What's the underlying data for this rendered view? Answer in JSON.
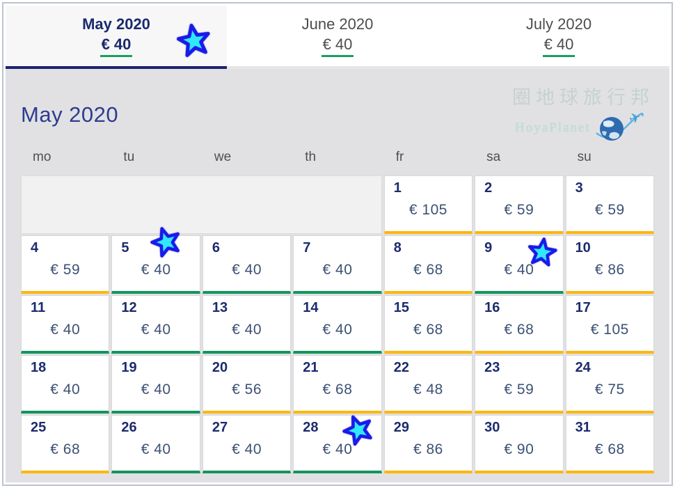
{
  "tabs": [
    {
      "label": "May 2020",
      "price": "€ 40",
      "active": true
    },
    {
      "label": "June 2020",
      "price": "€ 40",
      "active": false
    },
    {
      "label": "July 2020",
      "price": "€ 40",
      "active": false
    }
  ],
  "month_title": "May 2020",
  "weekdays": [
    "mo",
    "tu",
    "we",
    "th",
    "fr",
    "sa",
    "su"
  ],
  "watermark": {
    "title": "圈地球旅行邦",
    "subtitle": "HoyaPlanet",
    "icon": "globe-plane-icon"
  },
  "calendar": {
    "leading_empty": 4,
    "days": [
      {
        "day": "1",
        "price": "€ 105",
        "tier": "yellow"
      },
      {
        "day": "2",
        "price": "€ 59",
        "tier": "yellow"
      },
      {
        "day": "3",
        "price": "€ 59",
        "tier": "yellow"
      },
      {
        "day": "4",
        "price": "€ 59",
        "tier": "yellow"
      },
      {
        "day": "5",
        "price": "€ 40",
        "tier": "green"
      },
      {
        "day": "6",
        "price": "€ 40",
        "tier": "green"
      },
      {
        "day": "7",
        "price": "€ 40",
        "tier": "green"
      },
      {
        "day": "8",
        "price": "€ 68",
        "tier": "yellow"
      },
      {
        "day": "9",
        "price": "€ 40",
        "tier": "green"
      },
      {
        "day": "10",
        "price": "€ 86",
        "tier": "yellow"
      },
      {
        "day": "11",
        "price": "€ 40",
        "tier": "green"
      },
      {
        "day": "12",
        "price": "€ 40",
        "tier": "green"
      },
      {
        "day": "13",
        "price": "€ 40",
        "tier": "green"
      },
      {
        "day": "14",
        "price": "€ 40",
        "tier": "green"
      },
      {
        "day": "15",
        "price": "€ 68",
        "tier": "yellow"
      },
      {
        "day": "16",
        "price": "€ 68",
        "tier": "yellow"
      },
      {
        "day": "17",
        "price": "€ 105",
        "tier": "yellow"
      },
      {
        "day": "18",
        "price": "€ 40",
        "tier": "green"
      },
      {
        "day": "19",
        "price": "€ 40",
        "tier": "green"
      },
      {
        "day": "20",
        "price": "€ 56",
        "tier": "yellow"
      },
      {
        "day": "21",
        "price": "€ 68",
        "tier": "yellow"
      },
      {
        "day": "22",
        "price": "€ 48",
        "tier": "yellow"
      },
      {
        "day": "23",
        "price": "€ 59",
        "tier": "yellow"
      },
      {
        "day": "24",
        "price": "€ 75",
        "tier": "yellow"
      },
      {
        "day": "25",
        "price": "€ 68",
        "tier": "yellow"
      },
      {
        "day": "26",
        "price": "€ 40",
        "tier": "green"
      },
      {
        "day": "27",
        "price": "€ 40",
        "tier": "green"
      },
      {
        "day": "28",
        "price": "€ 40",
        "tier": "green"
      },
      {
        "day": "29",
        "price": "€ 86",
        "tier": "yellow"
      },
      {
        "day": "30",
        "price": "€ 90",
        "tier": "yellow"
      },
      {
        "day": "31",
        "price": "€ 68",
        "tier": "yellow"
      }
    ]
  },
  "colors": {
    "green": "#12955d",
    "yellow": "#fdb70d",
    "accent_navy": "#1a2370",
    "tab_underline_green": "#1aa05f",
    "star_fill": "#30e8f8",
    "star_stroke": "#1a1ae8"
  },
  "stickers": {
    "count": 4,
    "glyph": "star"
  }
}
